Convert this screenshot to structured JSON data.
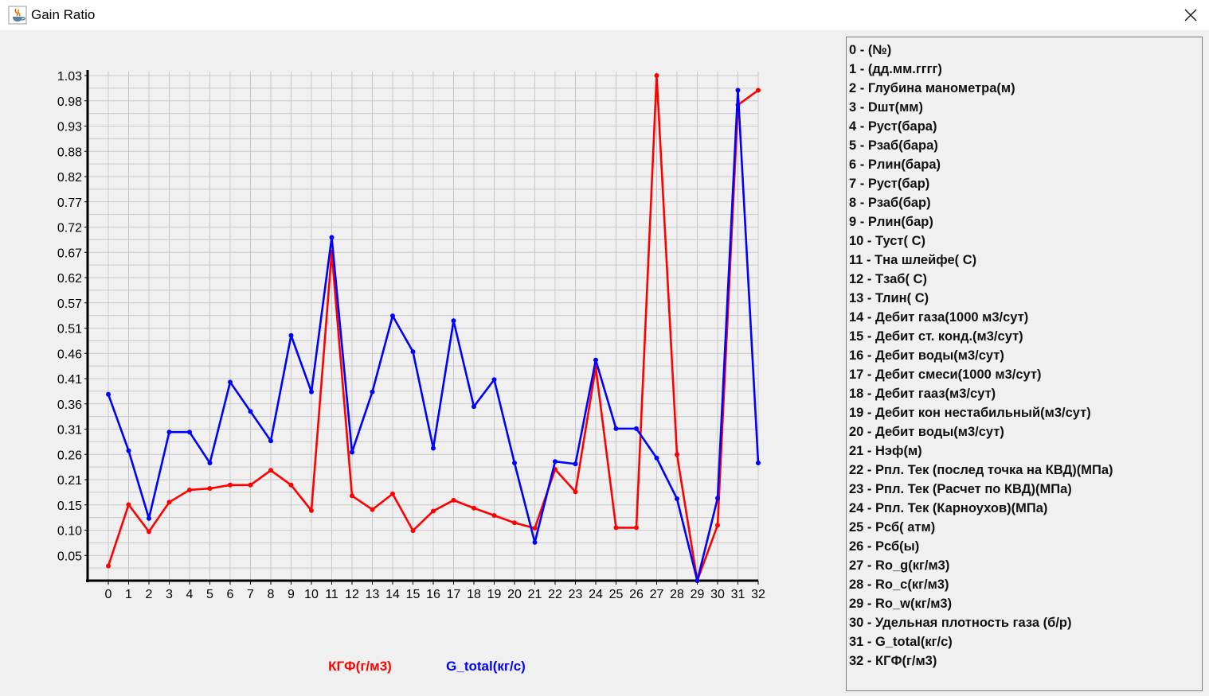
{
  "window": {
    "title": "Gain Ratio",
    "icon": "java-cup-icon",
    "close_icon": "close-icon"
  },
  "legend_list": {
    "items": [
      "0 - (№)",
      "1 - (дд.мм.гггг)",
      "2 - Глубина манометра(м)",
      "3 - Dшт(мм)",
      "4 - Руст(бара)",
      "5 - Рзаб(бара)",
      "6 - Рлин(бара)",
      "7 - Руст(бар)",
      "8 - Рзаб(бар)",
      "9 - Рлин(бар)",
      "10 - Туст( С)",
      "11 - Тна шлейфе( С)",
      "12 - Тзаб( С)",
      "13 - Тлин( С)",
      "14 - Дебит газа(1000 м3/сут)",
      "15 - Дебит ст. конд.(м3/сут)",
      "16 - Дебит воды(м3/сут)",
      "17 - Дебит смеси(1000 м3/сут)",
      "18 - Дебит гааз(м3/сут)",
      "19 - Дебит кон нестабильный(м3/сут)",
      "20 - Дебит воды(м3/сут)",
      "21 - Нэф(м)",
      "22 - Рпл. Тек (послед точка на КВД)(МПа)",
      "23 - Рпл. Тек (Расчет по КВД)(МПа)",
      "24 - Рпл. Тек (Карноухов)(МПа)",
      "25 - Рсб( атм)",
      "26 - Рсб(ы)",
      "27 - Ro_g(кг/м3)",
      "28 - Ro_c(кг/м3)",
      "29 - Ro_w(кг/м3)",
      "30 - Удельная плотность газа (б/р)",
      "31 - G_total(кг/с)",
      "32 - КГФ(г/м3)"
    ]
  },
  "chart_data": {
    "type": "line",
    "title": "",
    "xlabel": "",
    "ylabel": "",
    "x": [
      0,
      1,
      2,
      3,
      4,
      5,
      6,
      7,
      8,
      9,
      10,
      11,
      12,
      13,
      14,
      15,
      16,
      17,
      18,
      19,
      20,
      21,
      22,
      23,
      24,
      25,
      26,
      27,
      28,
      29,
      30,
      31,
      32
    ],
    "y_ticks": [
      "0.05",
      "0.10",
      "0.15",
      "0.21",
      "0.26",
      "0.31",
      "0.36",
      "0.41",
      "0.46",
      "0.51",
      "0.57",
      "0.62",
      "0.67",
      "0.72",
      "0.77",
      "0.82",
      "0.88",
      "0.93",
      "0.98",
      "1.03"
    ],
    "ylim": [
      0,
      1.03
    ],
    "grid": true,
    "legend_position": "bottom-center",
    "series": [
      {
        "name": "КГФ(г/м3)",
        "color": "#ff0000",
        "values": [
          0.03,
          0.155,
          0.1,
          0.16,
          0.185,
          0.188,
          0.195,
          0.195,
          0.225,
          0.195,
          0.143,
          0.67,
          0.173,
          0.145,
          0.177,
          0.102,
          0.142,
          0.164,
          0.148,
          0.133,
          0.118,
          0.107,
          0.227,
          0.181,
          0.435,
          0.108,
          0.108,
          1.03,
          0.257,
          0.0,
          0.113,
          0.97,
          1.0
        ]
      },
      {
        "name": "G_total(кг/с)",
        "color": "#0000ff",
        "values": [
          0.38,
          0.265,
          0.127,
          0.303,
          0.303,
          0.24,
          0.405,
          0.345,
          0.285,
          0.5,
          0.385,
          0.7,
          0.262,
          0.385,
          0.54,
          0.467,
          0.27,
          0.53,
          0.355,
          0.41,
          0.24,
          0.078,
          0.243,
          0.238,
          0.45,
          0.31,
          0.31,
          0.25,
          0.167,
          0.0,
          0.168,
          1.0,
          0.24
        ]
      }
    ]
  }
}
